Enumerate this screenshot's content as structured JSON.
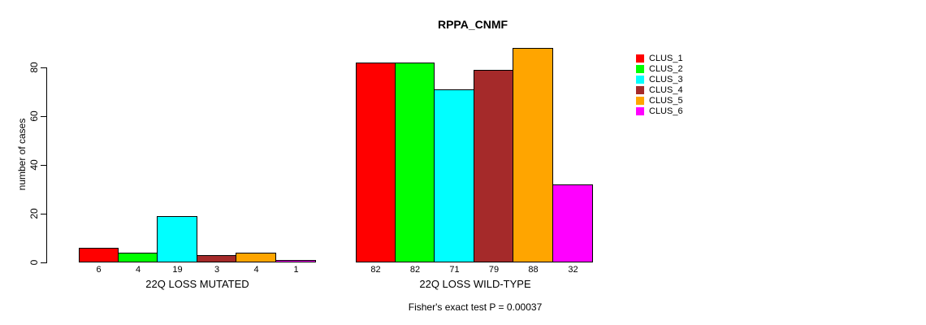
{
  "title": "RPPA_CNMF",
  "ylabel": "number of cases",
  "caption": "Fisher's exact test P = 0.00037",
  "legend": [
    {
      "label": "CLUS_1",
      "color": "#FF0000"
    },
    {
      "label": "CLUS_2",
      "color": "#00FF00"
    },
    {
      "label": "CLUS_3",
      "color": "#00FFFF"
    },
    {
      "label": "CLUS_4",
      "color": "#A52A2A"
    },
    {
      "label": "CLUS_5",
      "color": "#FFA500"
    },
    {
      "label": "CLUS_6",
      "color": "#FF00FF"
    }
  ],
  "chart_data": {
    "type": "bar",
    "title": "RPPA_CNMF",
    "xlabel": "",
    "ylabel": "number of cases",
    "ylim": [
      0,
      88
    ],
    "yticks": [
      0,
      20,
      40,
      60,
      80
    ],
    "grid": false,
    "legend_position": "right",
    "series_names": [
      "CLUS_1",
      "CLUS_2",
      "CLUS_3",
      "CLUS_4",
      "CLUS_5",
      "CLUS_6"
    ],
    "colors": [
      "#FF0000",
      "#00FF00",
      "#00FFFF",
      "#A52A2A",
      "#FFA500",
      "#FF00FF"
    ],
    "groups": [
      {
        "label": "22Q LOSS MUTATED",
        "values": [
          6,
          4,
          19,
          3,
          4,
          1
        ]
      },
      {
        "label": "22Q LOSS WILD-TYPE",
        "values": [
          82,
          82,
          71,
          79,
          88,
          32
        ]
      }
    ],
    "annotation": "Fisher's exact test P = 0.00037"
  }
}
